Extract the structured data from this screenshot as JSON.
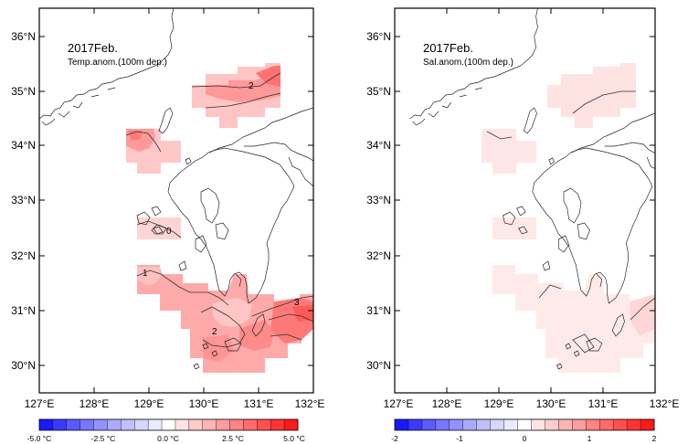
{
  "left_panel": {
    "title": "2017Feb.",
    "subtitle": "Temp.anom.(100m dep.)",
    "contour_labels": [
      "2",
      "0",
      "1",
      "2",
      "3"
    ]
  },
  "right_panel": {
    "title": "2017Feb.",
    "subtitle": "Sal.anom.(100m dep.)"
  },
  "lat_labels": [
    "36°N",
    "35°N",
    "34°N",
    "33°N",
    "32°N",
    "31°N",
    "30°N"
  ],
  "lon_labels": [
    "127°E",
    "128°E",
    "129°E",
    "130°E",
    "131°E",
    "132°E"
  ],
  "temp_colorbar": {
    "labels": [
      "-5.0 °C",
      "-2.5 °C",
      "0.0 °C",
      "2.5 °C",
      "5.0 °C"
    ],
    "colors": [
      "#1a1aff",
      "#3a3aff",
      "#5a5aff",
      "#7777ff",
      "#9292ff",
      "#aaaaff",
      "#c0c0ff",
      "#d6d6ff",
      "#eaeaff",
      "#ffffff",
      "#ffe4e4",
      "#ffcccc",
      "#ffb5b5",
      "#ff9c9c",
      "#ff8484",
      "#ff6b6b",
      "#ff5050",
      "#ff3434",
      "#ff1a1a"
    ]
  },
  "sal_colorbar": {
    "labels": [
      "-2",
      "-1",
      "0",
      "1",
      "2"
    ],
    "colors": [
      "#1a1aff",
      "#3a3aff",
      "#5a5aff",
      "#7777ff",
      "#9292ff",
      "#aaaaff",
      "#c0c0ff",
      "#d6d6ff",
      "#eaeaff",
      "#ffffff",
      "#ffe4e4",
      "#ffcccc",
      "#ffb5b5",
      "#ff9c9c",
      "#ff8484",
      "#ff6b6b",
      "#ff5050",
      "#ff3434",
      "#ff1a1a"
    ]
  },
  "colors": {
    "anom_weak": "#ffd8d8",
    "anom_moderate": "#ffb0b0",
    "anom_strong": "#ff8080",
    "anom_very_strong": "#ff5a5a"
  }
}
